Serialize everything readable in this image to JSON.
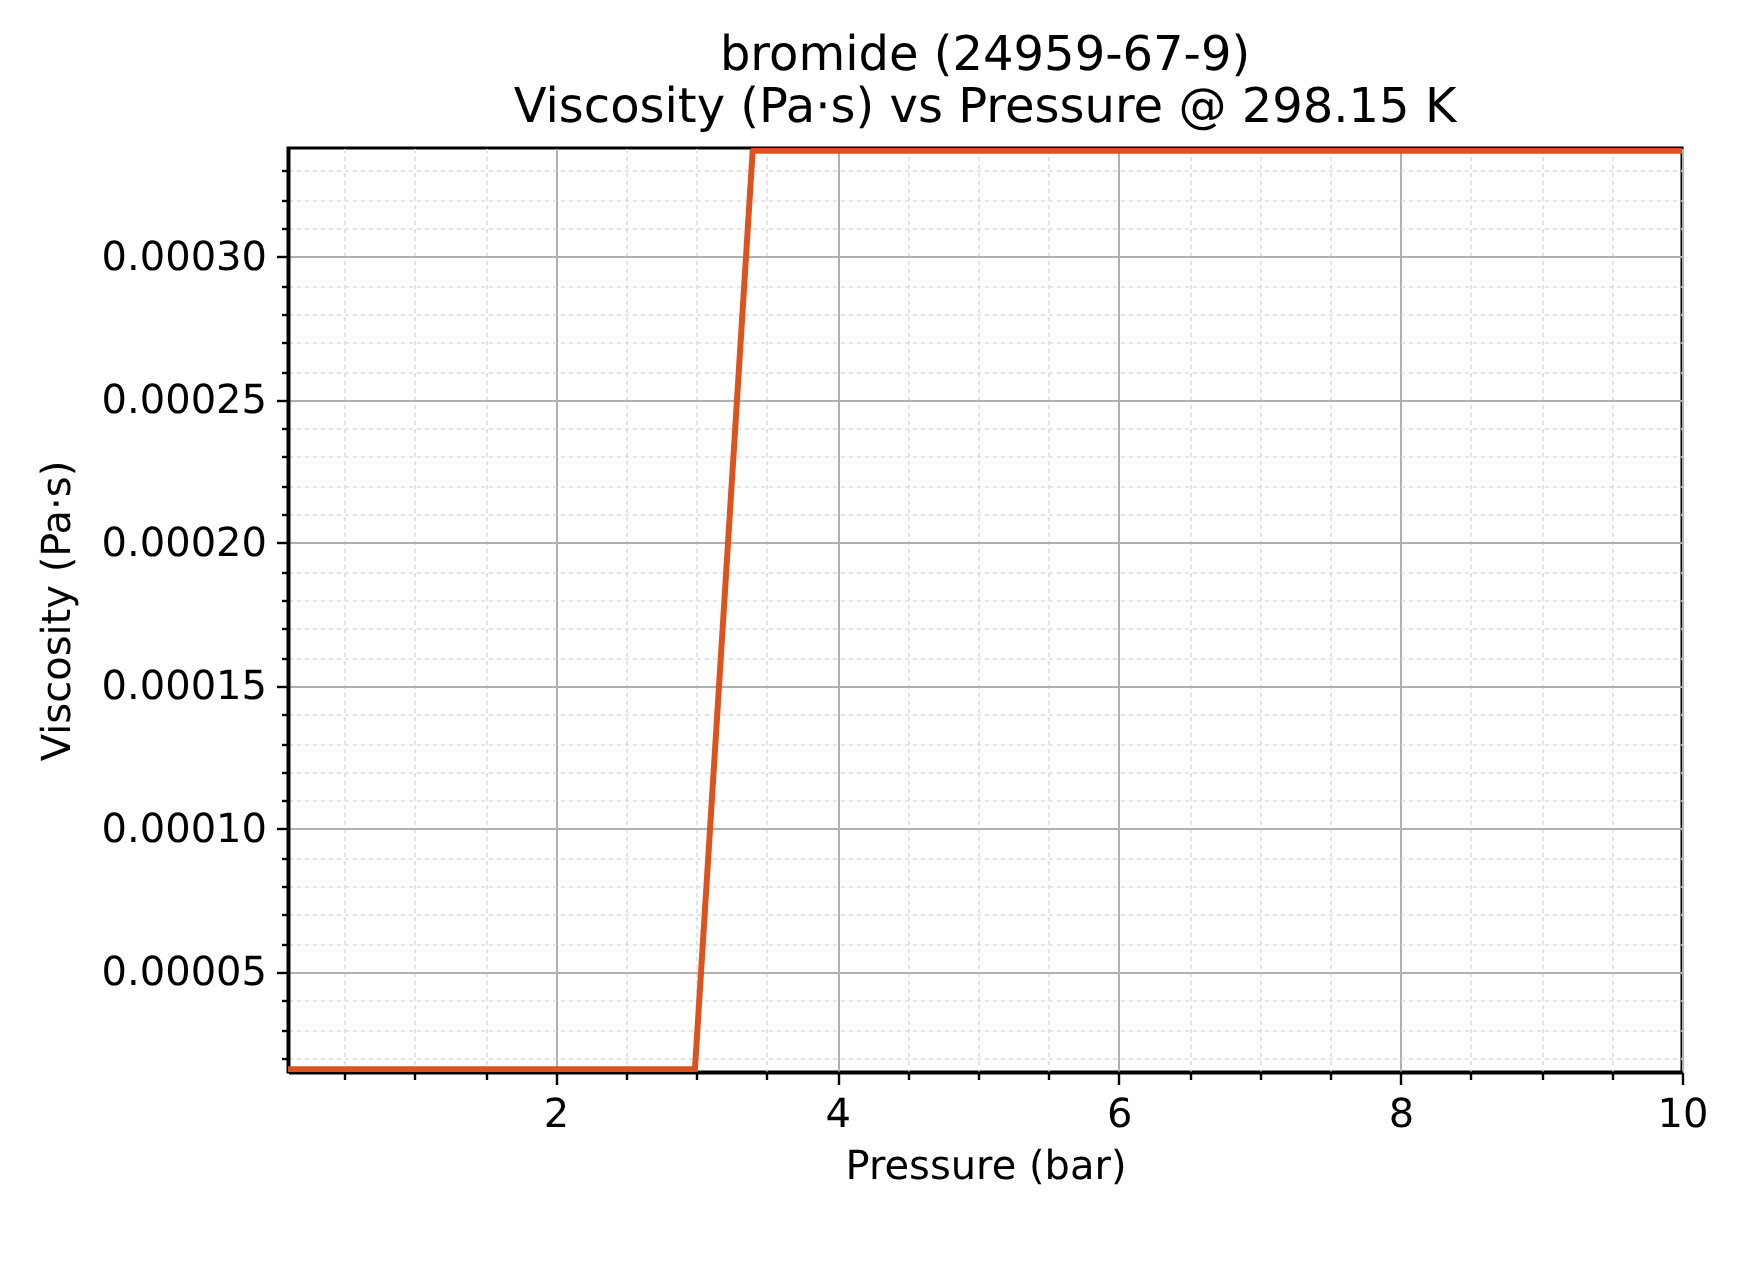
{
  "chart_data": {
    "type": "line",
    "title": "bromide (24959-67-9)",
    "subtitle": "Viscosity (Pa·s) vs Pressure @ 298.15 K",
    "xlabel": "Pressure (bar)",
    "ylabel": "Viscosity (Pa·s)",
    "x": [
      0.1,
      2.99,
      3.4,
      10
    ],
    "series": [
      {
        "color": "#dc5320",
        "values": [
          1.6e-05,
          1.6e-05,
          0.000337,
          0.000337
        ]
      }
    ],
    "xlim": [
      0.1,
      10
    ],
    "xticks": [
      {
        "value": 0.5,
        "label": null
      },
      {
        "value": 1,
        "label": null
      },
      {
        "value": 1.5,
        "label": null
      },
      2,
      {
        "value": 2.5,
        "label": null
      },
      {
        "value": 3,
        "label": null
      },
      {
        "value": 3.5,
        "label": null
      },
      4,
      {
        "value": 4.5,
        "label": null
      },
      {
        "value": 5,
        "label": null
      },
      {
        "value": 5.5,
        "label": null
      },
      6,
      {
        "value": 6.5,
        "label": null
      },
      {
        "value": 7,
        "label": null
      },
      {
        "value": 7.5,
        "label": null
      },
      8,
      {
        "value": 8.5,
        "label": null
      },
      {
        "value": 9,
        "label": null
      },
      {
        "value": 9.5,
        "label": null
      },
      10
    ],
    "ylim": [
      1.5e-05,
      0.000338
    ],
    "yticks": [
      {
        "value": 2e-05,
        "label": null
      },
      {
        "value": 3e-05,
        "label": null
      },
      {
        "value": 4e-05,
        "label": null
      },
      {
        "value": 5e-05,
        "label": "0.00005"
      },
      {
        "value": 6e-05,
        "label": null
      },
      {
        "value": 7e-05,
        "label": null
      },
      {
        "value": 8e-05,
        "label": null
      },
      {
        "value": 9e-05,
        "label": null
      },
      {
        "value": 0.0001,
        "label": "0.00010"
      },
      {
        "value": 0.00011,
        "label": null
      },
      {
        "value": 0.00012,
        "label": null
      },
      {
        "value": 0.00013,
        "label": null
      },
      {
        "value": 0.00014,
        "label": null
      },
      {
        "value": 0.00015,
        "label": "0.00015"
      },
      {
        "value": 0.00016,
        "label": null
      },
      {
        "value": 0.00017,
        "label": null
      },
      {
        "value": 0.00018,
        "label": null
      },
      {
        "value": 0.00019,
        "label": null
      },
      {
        "value": 0.0002,
        "label": "0.00020"
      },
      {
        "value": 0.00021,
        "label": null
      },
      {
        "value": 0.00022,
        "label": null
      },
      {
        "value": 0.00023,
        "label": null
      },
      {
        "value": 0.00024,
        "label": null
      },
      {
        "value": 0.00025,
        "label": "0.00025"
      },
      {
        "value": 0.00026,
        "label": null
      },
      {
        "value": 0.00027,
        "label": null
      },
      {
        "value": 0.00028,
        "label": null
      },
      {
        "value": 0.00029,
        "label": null
      },
      {
        "value": 0.0003,
        "label": "0.00030"
      },
      {
        "value": 0.00031,
        "label": null
      },
      {
        "value": 0.00032,
        "label": null
      },
      {
        "value": 0.00033,
        "label": null
      }
    ],
    "grid": true,
    "line_style": "solid"
  }
}
